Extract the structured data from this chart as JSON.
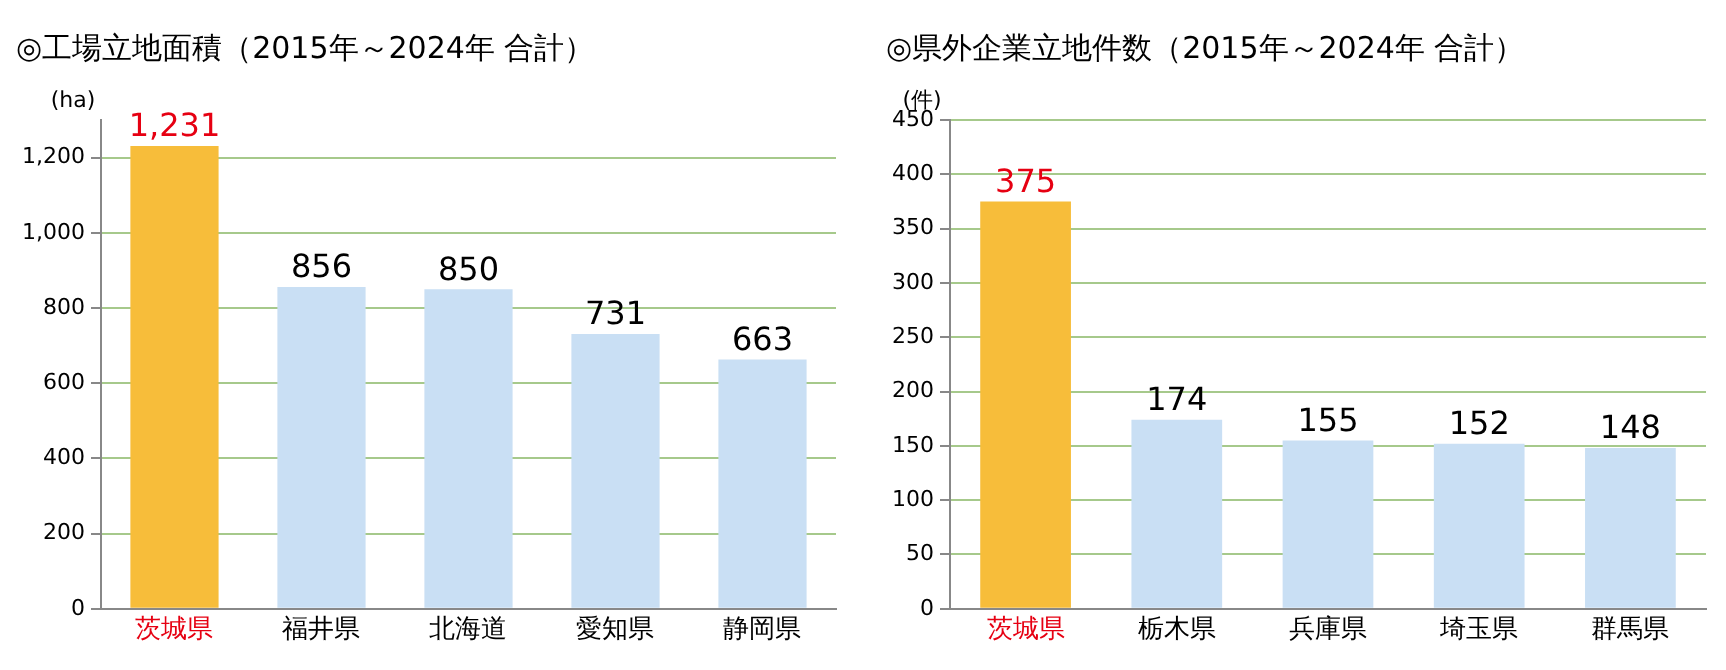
{
  "chart_data": [
    {
      "type": "bar",
      "title": "◎工場立地面積（2015年～2024年 合計）",
      "ylabel": "(ha)",
      "categories": [
        "茨城県",
        "福井県",
        "北海道",
        "愛知県",
        "静岡県"
      ],
      "values": [
        1231,
        856,
        850,
        731,
        663
      ],
      "colors": [
        "#f7bd3a",
        "#c9dff4",
        "#c9dff4",
        "#c9dff4",
        "#c9dff4"
      ],
      "value_labels": [
        "1,231",
        "856",
        "850",
        "731",
        "663"
      ],
      "ylim": [
        0,
        1300
      ],
      "yticks": [
        0,
        200,
        400,
        600,
        800,
        {
          "value": 1000,
          "label": "1,000"
        },
        {
          "value": 1200,
          "label": "1,200"
        }
      ],
      "grid": "y",
      "legend": false
    },
    {
      "type": "bar",
      "title": "◎県外企業立地件数（2015年～2024年 合計）",
      "ylabel": "(件)",
      "categories": [
        "茨城県",
        "栃木県",
        "兵庫県",
        "埼玉県",
        "群馬県"
      ],
      "values": [
        375,
        174,
        155,
        152,
        148
      ],
      "colors": [
        "#f7bd3a",
        "#c9dff4",
        "#c9dff4",
        "#c9dff4",
        "#c9dff4"
      ],
      "data_labels": true,
      "ylim": [
        0,
        450
      ],
      "yticks": [
        0,
        50,
        100,
        150,
        200,
        250,
        300,
        350,
        400,
        450
      ],
      "grid": "y",
      "legend": false
    }
  ]
}
